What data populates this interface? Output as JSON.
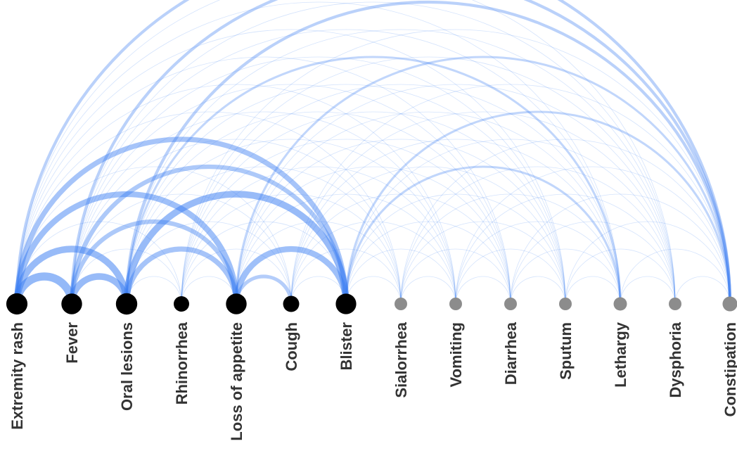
{
  "diagram": {
    "type": "arc",
    "colors": {
      "arc": "#3d7ff2",
      "primary_node": "#000000",
      "secondary_node": "#8c8c8c",
      "label": "#333333"
    },
    "nodes": [
      {
        "label": "Extremity rash",
        "group": "primary"
      },
      {
        "label": "Fever",
        "group": "primary"
      },
      {
        "label": "Oral lesions",
        "group": "primary"
      },
      {
        "label": "Rhinorrhea",
        "group": "primary"
      },
      {
        "label": "Loss of appetite",
        "group": "primary"
      },
      {
        "label": "Cough",
        "group": "primary"
      },
      {
        "label": "Blister",
        "group": "primary"
      },
      {
        "label": "Sialorrhea",
        "group": "secondary"
      },
      {
        "label": "Vomiting",
        "group": "secondary"
      },
      {
        "label": "Diarrhea",
        "group": "secondary"
      },
      {
        "label": "Sputum",
        "group": "secondary"
      },
      {
        "label": "Lethargy",
        "group": "secondary"
      },
      {
        "label": "Dysphoria",
        "group": "secondary"
      },
      {
        "label": "Constipation",
        "group": "secondary"
      }
    ],
    "strong_links": [
      {
        "source": 0,
        "target": 1,
        "strength": 10
      },
      {
        "source": 0,
        "target": 2,
        "strength": 8
      },
      {
        "source": 0,
        "target": 4,
        "strength": 7
      },
      {
        "source": 0,
        "target": 6,
        "strength": 6
      },
      {
        "source": 1,
        "target": 2,
        "strength": 8
      },
      {
        "source": 1,
        "target": 4,
        "strength": 5
      },
      {
        "source": 1,
        "target": 6,
        "strength": 5
      },
      {
        "source": 2,
        "target": 4,
        "strength": 6
      },
      {
        "source": 2,
        "target": 6,
        "strength": 8
      },
      {
        "source": 4,
        "target": 6,
        "strength": 7
      },
      {
        "source": 4,
        "target": 5,
        "strength": 4
      },
      {
        "source": 0,
        "target": 13,
        "strength": 3
      },
      {
        "source": 1,
        "target": 13,
        "strength": 3
      },
      {
        "source": 2,
        "target": 13,
        "strength": 3
      },
      {
        "source": 4,
        "target": 13,
        "strength": 2
      },
      {
        "source": 6,
        "target": 13,
        "strength": 2
      },
      {
        "source": 2,
        "target": 11,
        "strength": 2
      },
      {
        "source": 6,
        "target": 11,
        "strength": 2
      }
    ],
    "base_link_strength": 1
  }
}
